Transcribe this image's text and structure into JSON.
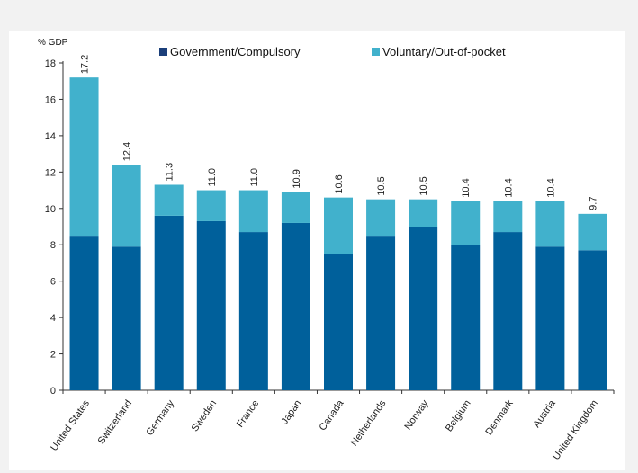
{
  "chart_data": {
    "type": "bar",
    "stacked": true,
    "ylabel": "% GDP",
    "ylim": [
      0,
      18
    ],
    "yticks": [
      0,
      2,
      4,
      6,
      8,
      10,
      12,
      14,
      16,
      18
    ],
    "grid": false,
    "legend_position": "top",
    "categories": [
      "United States",
      "Switzerland",
      "Germany",
      "Sweden",
      "France",
      "Japan",
      "Canada",
      "Netherlands",
      "Norway",
      "Belgium",
      "Denmark",
      "Austria",
      "United Kingdom"
    ],
    "series": [
      {
        "name": "Government/Compulsory",
        "color": "#00609b",
        "values": [
          8.5,
          7.9,
          9.6,
          9.3,
          8.7,
          9.2,
          7.5,
          8.5,
          9.0,
          8.0,
          8.7,
          7.9,
          7.7
        ]
      },
      {
        "name": "Voluntary/Out-of-pocket",
        "color": "#41b1cc",
        "values": [
          8.7,
          4.5,
          1.7,
          1.7,
          2.3,
          1.7,
          3.1,
          2.0,
          1.5,
          2.4,
          1.7,
          2.5,
          2.0
        ]
      }
    ],
    "totals": [
      "17.2",
      "12.4",
      "11.3",
      "11.0",
      "11.0",
      "10.9",
      "10.6",
      "10.5",
      "10.5",
      "10.4",
      "10.4",
      "10.4",
      "9.7"
    ]
  },
  "legend_colors": {
    "government": "#1b3f7a",
    "voluntary": "#41b1cc"
  }
}
